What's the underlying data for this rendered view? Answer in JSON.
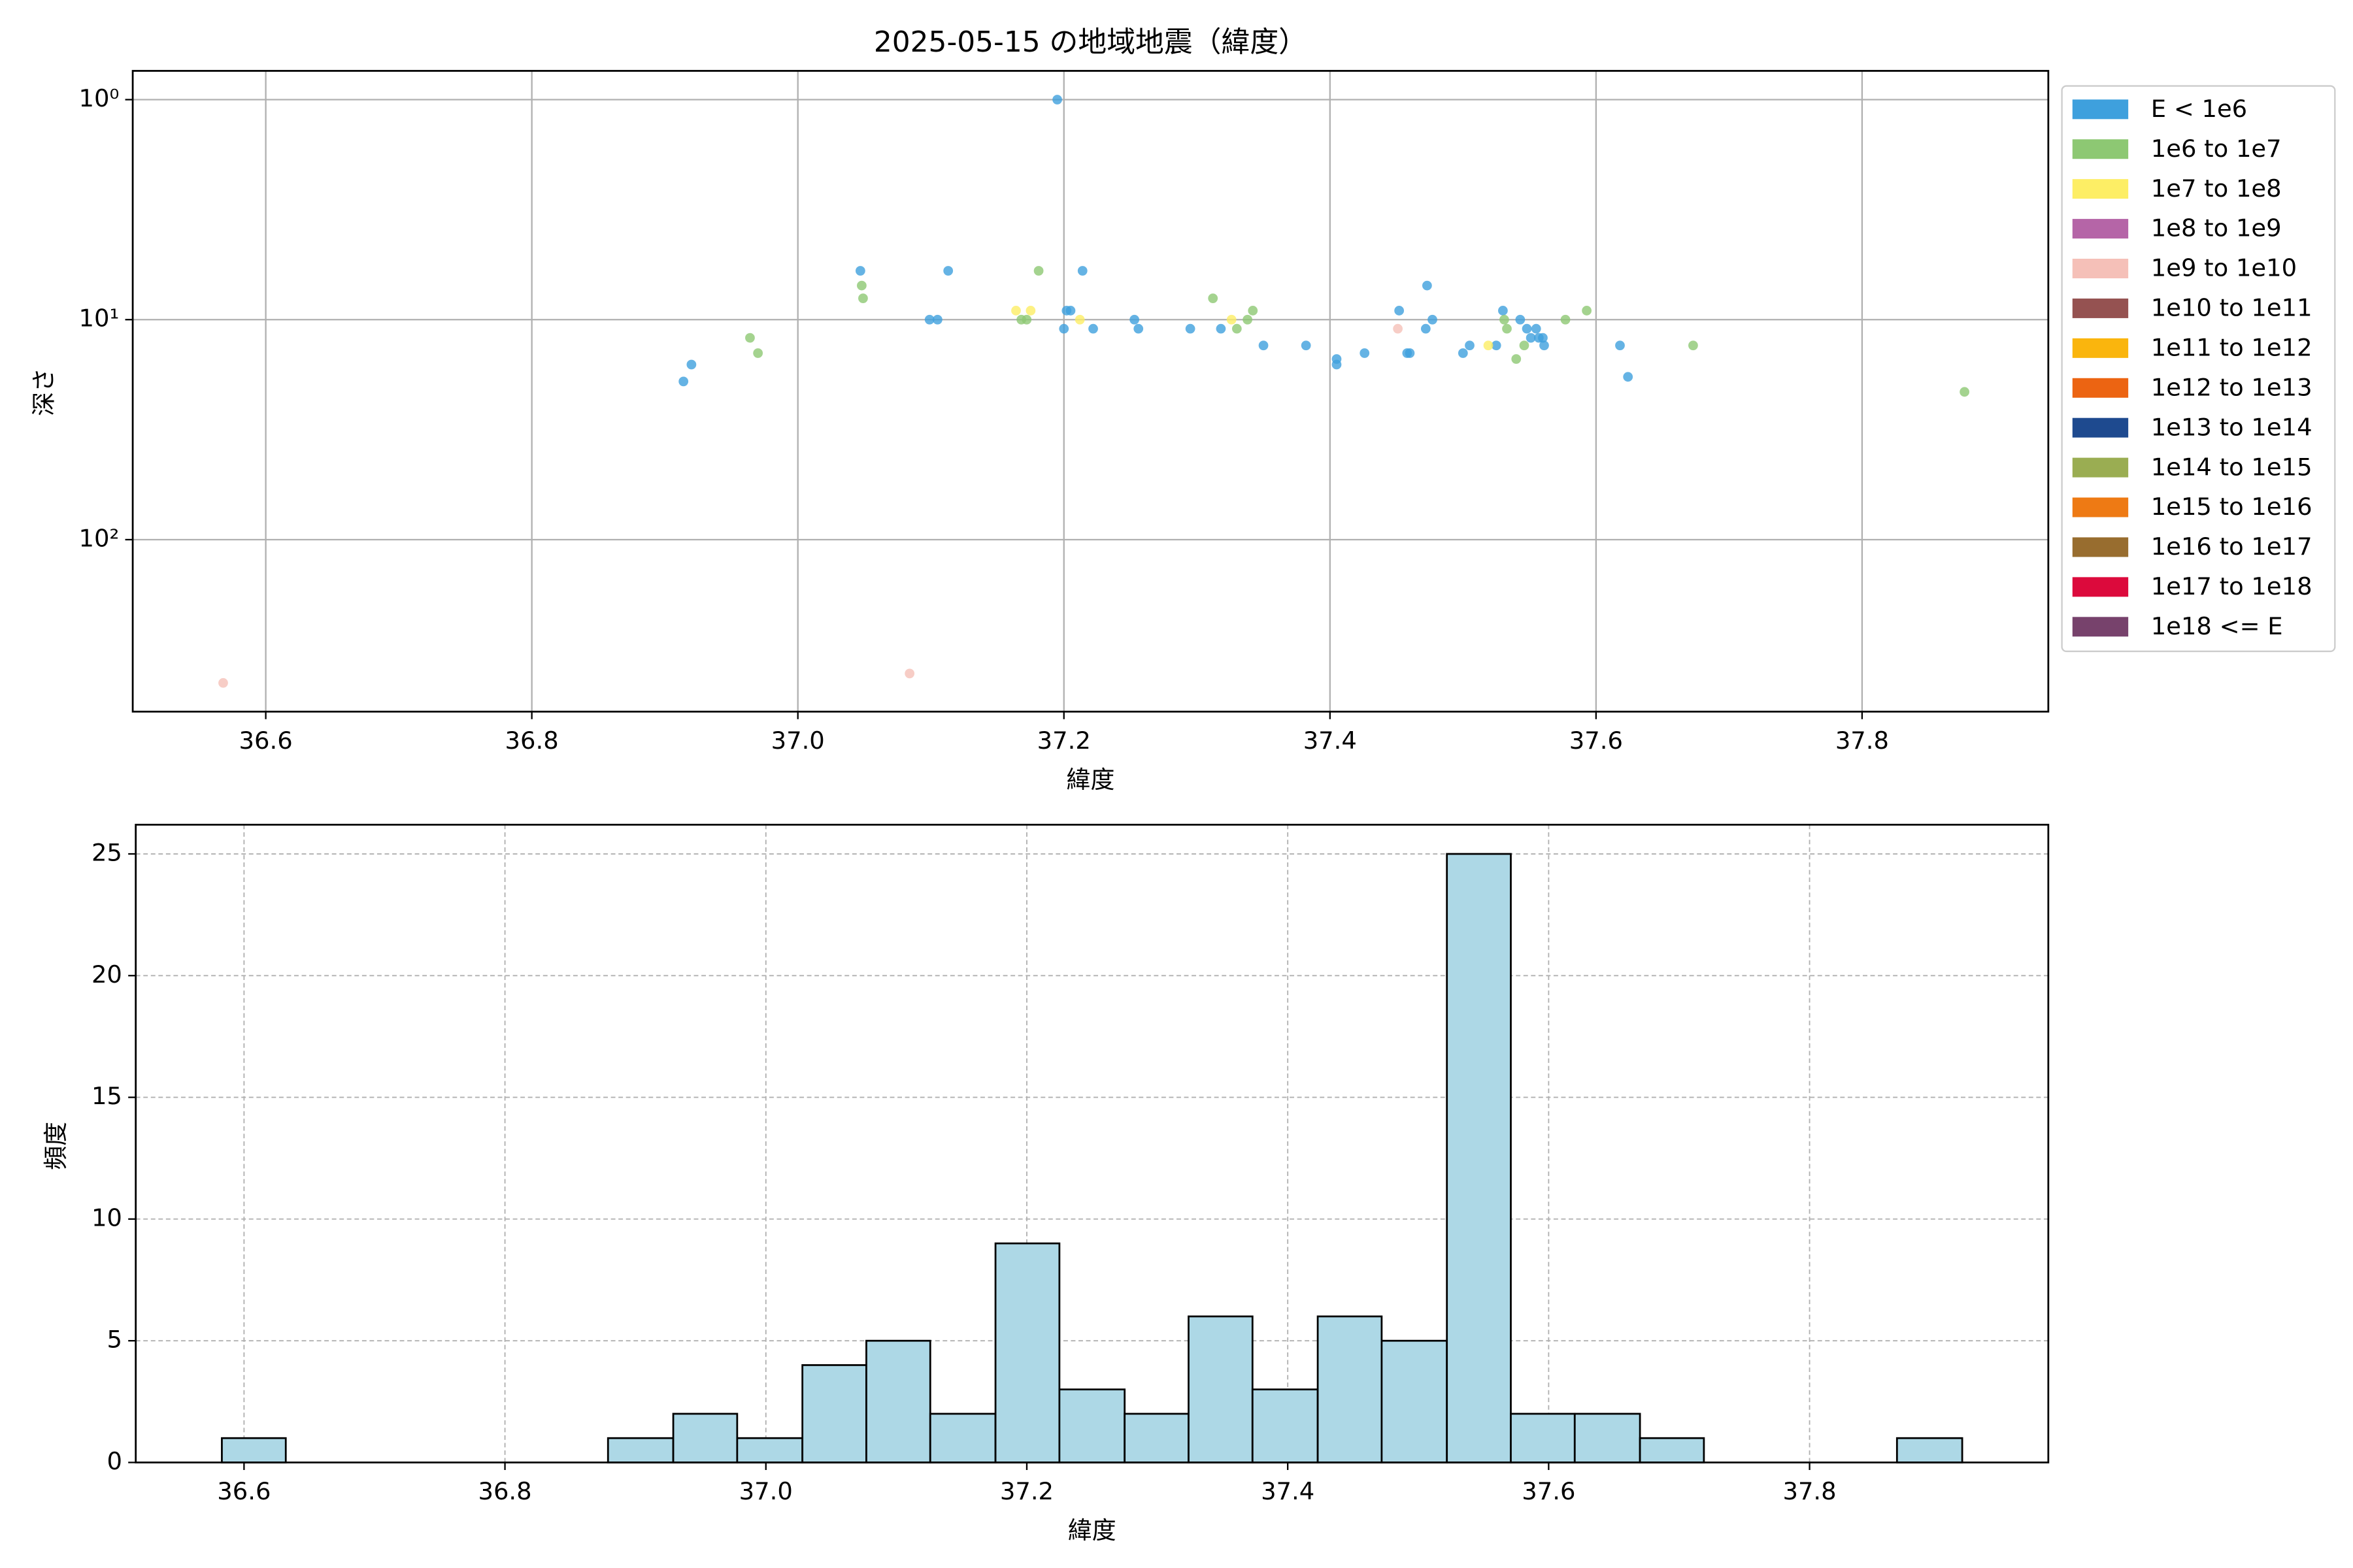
{
  "chart_data": [
    {
      "type": "scatter",
      "title": "2025-05-15 の地域地震（緯度）",
      "x_label": "緯度",
      "y_label": "深さ",
      "xlim": [
        36.5,
        37.94
      ],
      "xticks": [
        36.6,
        36.8,
        {
          "value": 37.0,
          "label": "37.0"
        },
        37.2,
        37.4,
        37.6,
        37.8
      ],
      "ylim": [
        0.74,
        605
      ],
      "log_y": true,
      "y_inverted": true,
      "yticks": [
        {
          "value": 1,
          "label": "10⁰"
        },
        {
          "value": 10,
          "label": "10¹"
        },
        {
          "value": 100,
          "label": "10²"
        }
      ],
      "grid": true,
      "legend": "outside right",
      "series": [
        {
          "name": "E < 1e6",
          "color": "#3ea0dd",
          "x": [
            36.914,
            36.92,
            37.047,
            37.099,
            37.105,
            37.113,
            37.195,
            37.2,
            37.202,
            37.205,
            37.214,
            37.222,
            37.253,
            37.256,
            37.295,
            37.318,
            37.35,
            37.382,
            37.405,
            37.405,
            37.426,
            37.452,
            37.458,
            37.46,
            37.472,
            37.473,
            37.477,
            37.5,
            37.505,
            37.525,
            37.53,
            37.543,
            37.548,
            37.551,
            37.555,
            37.557,
            37.56,
            37.561,
            37.618,
            37.624
          ],
          "values": [
            19.1,
            16.0,
            6.0,
            10,
            10,
            6.0,
            1.0,
            11.0,
            9.1,
            9.1,
            6.0,
            11.0,
            10,
            11,
            11,
            11,
            13.1,
            13.1,
            15.1,
            16.0,
            14.2,
            9.1,
            14.2,
            14.2,
            11,
            7.0,
            10,
            14.2,
            13.1,
            13.1,
            9.1,
            10,
            11,
            12.1,
            11,
            12.1,
            12.1,
            13.1,
            13.1,
            18.2
          ]
        },
        {
          "name": "1e6 to 1e7",
          "color": "#8dc873",
          "x": [
            36.964,
            36.97,
            37.048,
            37.049,
            37.168,
            37.172,
            37.181,
            37.312,
            37.33,
            37.338,
            37.342,
            37.531,
            37.533,
            37.54,
            37.546,
            37.577,
            37.593,
            37.673,
            37.877
          ],
          "values": [
            12.1,
            14.2,
            7.0,
            8.0,
            10,
            10,
            6.0,
            8.0,
            11,
            10,
            9.1,
            10,
            11,
            15.1,
            13.1,
            10,
            9.1,
            13.1,
            21.3
          ]
        },
        {
          "name": "1e7 to 1e8",
          "color": "#fdee65",
          "x": [
            37.164,
            37.175,
            37.212,
            37.326,
            37.519
          ],
          "values": [
            9.1,
            9.1,
            10,
            10,
            13.1
          ]
        },
        {
          "name": "1e8 to 1e9",
          "color": "#b565a7",
          "x": [],
          "values": []
        },
        {
          "name": "1e9 to 1e10",
          "color": "#f5c0b8",
          "x": [
            36.568,
            37.084,
            37.451
          ],
          "values": [
            448,
            406,
            11
          ]
        },
        {
          "name": "1e10 to 1e11",
          "color": "#955251",
          "x": [],
          "values": []
        },
        {
          "name": "1e11 to 1e12",
          "color": "#fab50d",
          "x": [],
          "values": []
        },
        {
          "name": "1e12 to 1e13",
          "color": "#ec6412",
          "x": [],
          "values": []
        },
        {
          "name": "1e13 to 1e14",
          "color": "#1e4a8f",
          "x": [],
          "values": []
        },
        {
          "name": "1e14 to 1e15",
          "color": "#9aad52",
          "x": [],
          "values": []
        },
        {
          "name": "1e15 to 1e16",
          "color": "#ee7a14",
          "x": [],
          "values": []
        },
        {
          "name": "1e16 to 1e17",
          "color": "#986d2f",
          "x": [],
          "values": []
        },
        {
          "name": "1e17 to 1e18",
          "color": "#dc0a3c",
          "x": [],
          "values": []
        },
        {
          "name": "1e18 <= E",
          "color": "#77426c",
          "x": [],
          "values": []
        }
      ]
    },
    {
      "type": "histogram",
      "x_label": "緯度",
      "y_label": "頻度",
      "xlim": [
        36.517,
        37.983
      ],
      "xticks": [
        36.6,
        36.8,
        {
          "value": 37.0,
          "label": "37.0"
        },
        37.2,
        37.4,
        37.6,
        37.8
      ],
      "ylim": [
        0,
        26.2
      ],
      "yticks": [
        0,
        5,
        10,
        15,
        20,
        25
      ],
      "grid": true,
      "color": "#add8e6",
      "bins": [
        36.583,
        36.632,
        36.682,
        36.731,
        36.781,
        36.83,
        36.879,
        36.929,
        36.978,
        37.028,
        37.077,
        37.126,
        37.176,
        37.225,
        37.275,
        37.324,
        37.373,
        37.423,
        37.472,
        37.522,
        37.571,
        37.62,
        37.67,
        37.719,
        37.769,
        37.818,
        37.867,
        37.917
      ],
      "values": [
        1,
        0,
        0,
        0,
        0,
        0,
        1,
        2,
        1,
        4,
        5,
        2,
        9,
        3,
        2,
        6,
        3,
        6,
        5,
        25,
        2,
        2,
        1,
        0,
        0,
        0,
        1
      ]
    }
  ]
}
